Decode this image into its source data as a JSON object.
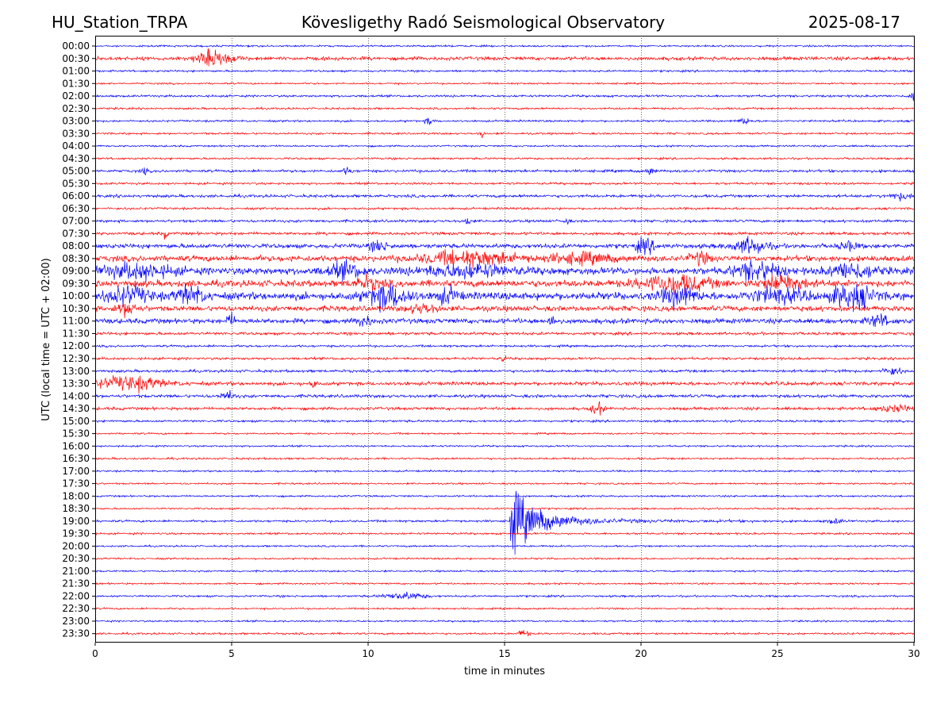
{
  "header": {
    "station": "HU_Station_TRPA",
    "observatory": "Kövesligethy Radó Seismological Observatory",
    "date": "2025-08-17"
  },
  "chart_data": {
    "type": "line",
    "title": "Kövesligethy Radó Seismological Observatory",
    "xlabel": "time in minutes",
    "ylabel": "UTC (local time = UTC + 02:00)",
    "xlim": [
      0,
      30
    ],
    "xticks": [
      "0",
      "5",
      "10",
      "15",
      "20",
      "25",
      "30"
    ],
    "vertical_gridlines_at": [
      5,
      10,
      15,
      20,
      25
    ],
    "row_labels": [
      "00:00",
      "00:30",
      "01:00",
      "01:30",
      "02:00",
      "02:30",
      "03:00",
      "03:30",
      "04:00",
      "04:30",
      "05:00",
      "05:30",
      "06:00",
      "06:30",
      "07:00",
      "07:30",
      "08:00",
      "08:30",
      "09:00",
      "09:30",
      "10:00",
      "10:30",
      "11:00",
      "11:30",
      "12:00",
      "12:30",
      "13:00",
      "13:30",
      "14:00",
      "14:30",
      "15:00",
      "15:30",
      "16:00",
      "16:30",
      "17:00",
      "17:30",
      "18:00",
      "18:30",
      "19:00",
      "19:30",
      "20:00",
      "20:30",
      "21:00",
      "21:30",
      "22:00",
      "22:30",
      "23:00",
      "23:30"
    ],
    "row_colors": [
      "#0000ff",
      "#ff0000"
    ],
    "noise_amplitude": [
      0.8,
      1.6,
      0.9,
      0.8,
      1.0,
      0.9,
      0.9,
      0.9,
      0.8,
      0.9,
      1.2,
      1.0,
      1.3,
      1.0,
      1.2,
      1.3,
      2.0,
      2.6,
      3.2,
      3.0,
      3.4,
      2.4,
      2.2,
      1.3,
      1.0,
      1.1,
      1.2,
      1.6,
      1.4,
      1.3,
      1.0,
      0.8,
      0.8,
      0.9,
      0.8,
      0.8,
      0.8,
      0.8,
      1.0,
      0.9,
      0.8,
      0.8,
      0.8,
      0.8,
      0.9,
      0.8,
      0.8,
      0.9
    ],
    "events": [
      {
        "row": 1,
        "t": 3.7,
        "dur": 1.3,
        "amp": 7
      },
      {
        "row": 4,
        "t": 29.8,
        "dur": 0.3,
        "amp": 4
      },
      {
        "row": 6,
        "t": 12.1,
        "dur": 0.3,
        "amp": 3
      },
      {
        "row": 6,
        "t": 23.6,
        "dur": 0.4,
        "amp": 3
      },
      {
        "row": 7,
        "t": 14.1,
        "dur": 0.1,
        "amp": 4
      },
      {
        "row": 10,
        "t": 1.7,
        "dur": 0.2,
        "amp": 3
      },
      {
        "row": 10,
        "t": 9.1,
        "dur": 0.3,
        "amp": 3
      },
      {
        "row": 10,
        "t": 20.2,
        "dur": 0.3,
        "amp": 3
      },
      {
        "row": 12,
        "t": 29.1,
        "dur": 0.8,
        "amp": 3
      },
      {
        "row": 14,
        "t": 13.6,
        "dur": 0.1,
        "amp": 5
      },
      {
        "row": 14,
        "t": 17.2,
        "dur": 0.1,
        "amp": 4
      },
      {
        "row": 15,
        "t": 2.5,
        "dur": 0.1,
        "amp": 5
      },
      {
        "row": 16,
        "t": 10.1,
        "dur": 0.6,
        "amp": 5
      },
      {
        "row": 16,
        "t": 19.8,
        "dur": 0.7,
        "amp": 6
      },
      {
        "row": 16,
        "t": 23.4,
        "dur": 1.2,
        "amp": 7
      },
      {
        "row": 16,
        "t": 27.3,
        "dur": 0.6,
        "amp": 4
      },
      {
        "row": 17,
        "t": 12.0,
        "dur": 3.5,
        "amp": 6
      },
      {
        "row": 17,
        "t": 16.5,
        "dur": 2.5,
        "amp": 4
      },
      {
        "row": 17,
        "t": 21.8,
        "dur": 0.7,
        "amp": 5
      },
      {
        "row": 18,
        "t": 0.3,
        "dur": 2.5,
        "amp": 6
      },
      {
        "row": 18,
        "t": 8.5,
        "dur": 1.3,
        "amp": 6
      },
      {
        "row": 18,
        "t": 12.0,
        "dur": 3.2,
        "amp": 5
      },
      {
        "row": 18,
        "t": 23.5,
        "dur": 1.5,
        "amp": 8
      },
      {
        "row": 18,
        "t": 27.0,
        "dur": 1.5,
        "amp": 7
      },
      {
        "row": 19,
        "t": 9.5,
        "dur": 1.0,
        "amp": 5
      },
      {
        "row": 19,
        "t": 20.0,
        "dur": 2.5,
        "amp": 7
      },
      {
        "row": 19,
        "t": 24.5,
        "dur": 1.5,
        "amp": 7
      },
      {
        "row": 20,
        "t": 0.5,
        "dur": 1.5,
        "amp": 7
      },
      {
        "row": 20,
        "t": 3.0,
        "dur": 1.0,
        "amp": 8
      },
      {
        "row": 20,
        "t": 10.0,
        "dur": 1.5,
        "amp": 10
      },
      {
        "row": 20,
        "t": 12.5,
        "dur": 0.8,
        "amp": 6
      },
      {
        "row": 20,
        "t": 20.8,
        "dur": 1.2,
        "amp": 8
      },
      {
        "row": 20,
        "t": 24.0,
        "dur": 2.0,
        "amp": 6
      },
      {
        "row": 20,
        "t": 27.0,
        "dur": 1.5,
        "amp": 10
      },
      {
        "row": 21,
        "t": 0.8,
        "dur": 0.7,
        "amp": 6
      },
      {
        "row": 21,
        "t": 11.5,
        "dur": 1.0,
        "amp": 4
      },
      {
        "row": 22,
        "t": 4.8,
        "dur": 0.3,
        "amp": 6
      },
      {
        "row": 22,
        "t": 9.6,
        "dur": 0.5,
        "amp": 5
      },
      {
        "row": 22,
        "t": 16.6,
        "dur": 0.3,
        "amp": 5
      },
      {
        "row": 22,
        "t": 28.3,
        "dur": 0.8,
        "amp": 5
      },
      {
        "row": 25,
        "t": 14.9,
        "dur": 0.1,
        "amp": 4
      },
      {
        "row": 26,
        "t": 27.3,
        "dur": 0.2,
        "amp": 3
      },
      {
        "row": 26,
        "t": 28.9,
        "dur": 0.6,
        "amp": 4
      },
      {
        "row": 27,
        "t": 0.0,
        "dur": 2.5,
        "amp": 6
      },
      {
        "row": 27,
        "t": 7.9,
        "dur": 0.2,
        "amp": 4
      },
      {
        "row": 28,
        "t": 4.6,
        "dur": 0.5,
        "amp": 4
      },
      {
        "row": 29,
        "t": 18.2,
        "dur": 0.4,
        "amp": 6
      },
      {
        "row": 29,
        "t": 28.7,
        "dur": 1.3,
        "amp": 3
      },
      {
        "row": 38,
        "t": 15.2,
        "dur": 10.0,
        "amp": 30,
        "decay": true
      },
      {
        "row": 38,
        "t": 26.8,
        "dur": 0.6,
        "amp": 2
      },
      {
        "row": 44,
        "t": 10.6,
        "dur": 1.5,
        "amp": 3
      },
      {
        "row": 47,
        "t": 15.5,
        "dur": 0.4,
        "amp": 3
      }
    ]
  }
}
